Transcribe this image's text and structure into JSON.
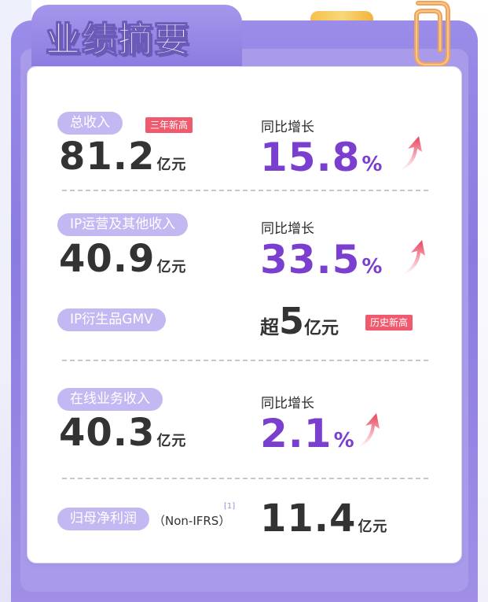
{
  "title": "业绩摘要",
  "metrics": [
    {
      "label": "总收入",
      "badge": "三年新高",
      "value": "81.2",
      "unit": "亿元",
      "growth_label": "同比增长",
      "growth_value": "15.8",
      "growth_unit": "%"
    },
    {
      "label": "IP运营及其他收入",
      "value": "40.9",
      "unit": "亿元",
      "growth_label": "同比增长",
      "growth_value": "33.5",
      "growth_unit": "%"
    },
    {
      "label": "IP衍生品GMV",
      "prefix": "超",
      "value": "5",
      "unit": "亿元",
      "badge": "历史新高"
    },
    {
      "label": "在线业务收入",
      "value": "40.3",
      "unit": "亿元",
      "growth_label": "同比增长",
      "growth_value": "2.1",
      "growth_unit": "%"
    },
    {
      "label": "归母净利润",
      "note": "（Non-IFRS）",
      "footnote": "[1]",
      "value": "11.4",
      "unit": "亿元"
    }
  ],
  "colors": {
    "frame": "#8a7bdf",
    "pill": "#c4b8f2",
    "badge": "#f05a6e",
    "growth": "#7a3fcf",
    "arrow": "#e8405a"
  },
  "icons": {
    "growth_arrow": "arrow-up-right-icon",
    "paperclip": "paperclip-icon"
  }
}
